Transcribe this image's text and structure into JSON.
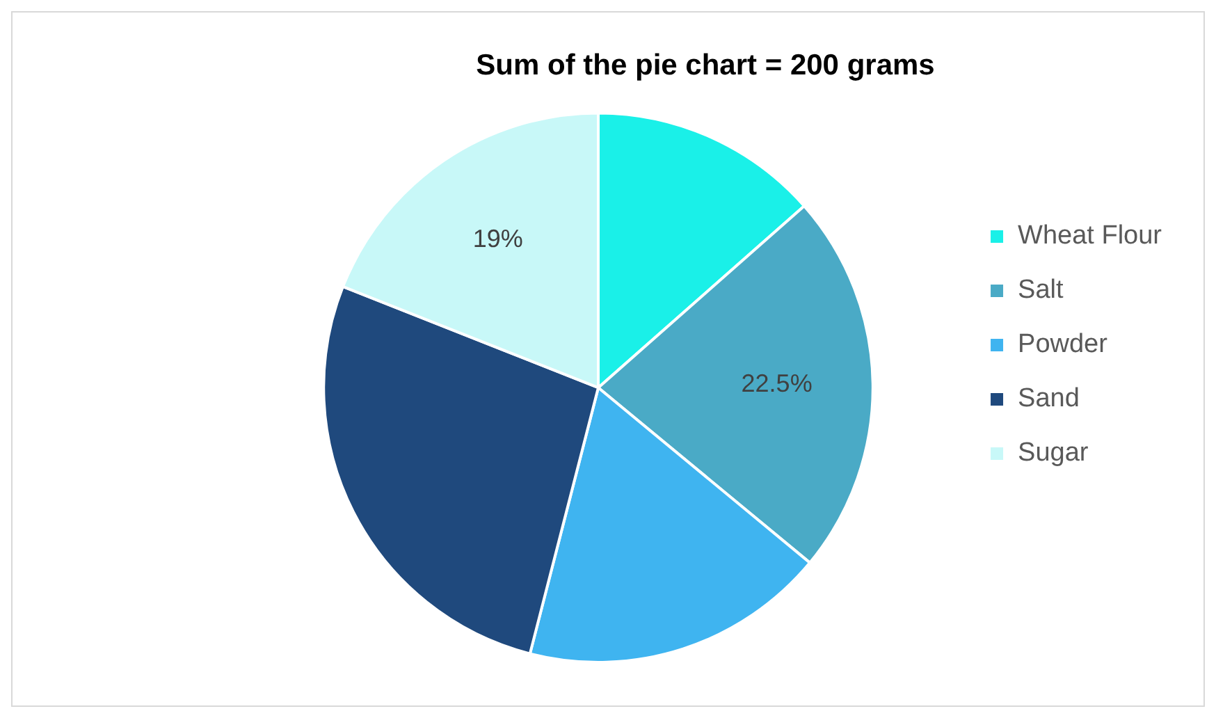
{
  "chart_data": {
    "type": "pie",
    "title": "Sum of the pie chart = 200 grams",
    "categories": [
      "Wheat Flour",
      "Salt",
      "Powder",
      "Sand",
      "Sugar"
    ],
    "values": [
      13.5,
      22.5,
      18,
      27,
      19
    ],
    "value_labels": [
      null,
      "22.5%",
      null,
      null,
      "19%"
    ],
    "colors": [
      "#1af0e8",
      "#4aaac6",
      "#3fb4f0",
      "#1f497d",
      "#c8f8f8"
    ],
    "legend": "right"
  }
}
